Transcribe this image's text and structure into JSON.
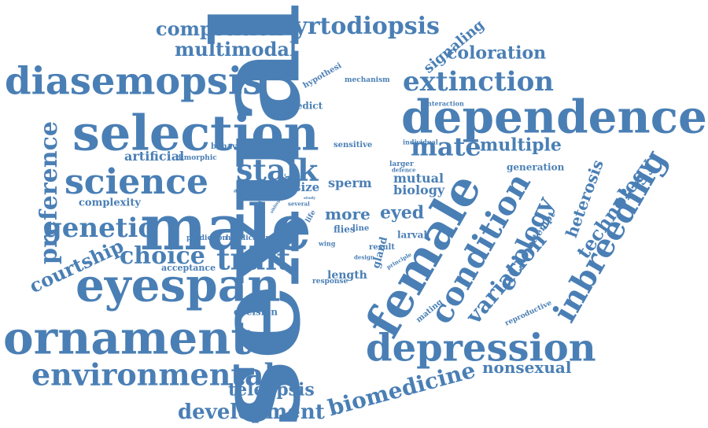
{
  "color": "#4a7fb5",
  "words": [
    {
      "text": "sexual",
      "rot": -90
    },
    {
      "text": "male",
      "rot": 0
    },
    {
      "text": "selection",
      "rot": 0
    },
    {
      "text": "dependence",
      "rot": 0
    },
    {
      "text": "ornament",
      "rot": 0
    },
    {
      "text": "eyespan",
      "rot": 0
    },
    {
      "text": "depression",
      "rot": 0
    },
    {
      "text": "female",
      "rot": -60
    },
    {
      "text": "diasemopsis",
      "rot": 0
    },
    {
      "text": "science",
      "rot": 0
    },
    {
      "text": "environmental",
      "rot": 0
    },
    {
      "text": "condition",
      "rot": -60
    },
    {
      "text": "inbreeding",
      "rot": -60
    },
    {
      "text": "trait",
      "rot": 0
    },
    {
      "text": "extinction",
      "rot": 0
    },
    {
      "text": "stalk",
      "rot": 0
    },
    {
      "text": "mate",
      "rot": 0
    },
    {
      "text": "genetic",
      "rot": 0
    },
    {
      "text": "choice",
      "rot": 0
    },
    {
      "text": "cyrtodiopsis",
      "rot": 0
    },
    {
      "text": "competition",
      "rot": 0
    },
    {
      "text": "multimodal",
      "rot": 0
    },
    {
      "text": "development",
      "rot": 0
    },
    {
      "text": "biomedicine",
      "rot": -15
    },
    {
      "text": "preference",
      "rot": -90
    },
    {
      "text": "courtship",
      "rot": -25
    },
    {
      "text": "ecology",
      "rot": -65
    },
    {
      "text": "variation",
      "rot": -50
    },
    {
      "text": "technology",
      "rot": -55
    },
    {
      "text": "heterosis",
      "rot": -70
    },
    {
      "text": "teleopsis",
      "rot": 0
    },
    {
      "text": "nonsexual",
      "rot": 0
    },
    {
      "text": "coloration",
      "rot": 0
    },
    {
      "text": "multiple",
      "rot": 0
    },
    {
      "text": "signaling",
      "rot": -40
    },
    {
      "text": "eyed",
      "rot": 0
    },
    {
      "text": "more",
      "rot": 0
    },
    {
      "text": "artificial",
      "rot": 0
    },
    {
      "text": "biology",
      "rot": 0
    },
    {
      "text": "sperm",
      "rot": 0
    },
    {
      "text": "mutual",
      "rot": 0
    },
    {
      "text": "size",
      "rot": 0
    },
    {
      "text": "complexity",
      "rot": 0
    },
    {
      "text": "length",
      "rot": 0
    },
    {
      "text": "decision",
      "rot": 0
    },
    {
      "text": "acceptance",
      "rot": 0
    },
    {
      "text": "larval",
      "rot": 0
    },
    {
      "text": "gland",
      "rot": -75
    },
    {
      "text": "attempt",
      "rot": -55
    },
    {
      "text": "predict",
      "rot": 0
    },
    {
      "text": "hypothesi",
      "rot": -30
    },
    {
      "text": "mechanism",
      "rot": 0
    },
    {
      "text": "behavior",
      "rot": 0
    },
    {
      "text": "sensitive",
      "rot": 0
    },
    {
      "text": "generation",
      "rot": 0
    },
    {
      "text": "dimorphic",
      "rot": 0
    },
    {
      "text": "risk",
      "rot": -60
    },
    {
      "text": "flies",
      "rot": 0
    },
    {
      "text": "line",
      "rot": 0
    },
    {
      "text": "prediction",
      "rot": 0
    },
    {
      "text": "handicap",
      "rot": 0
    },
    {
      "text": "strong",
      "rot": 0
    },
    {
      "text": "interaction",
      "rot": 0
    },
    {
      "text": "individual",
      "rot": 0
    },
    {
      "text": "larger",
      "rot": 0
    },
    {
      "text": "defence",
      "rot": 0
    },
    {
      "text": "addition",
      "rot": 0
    },
    {
      "text": "cultured",
      "rot": -80
    },
    {
      "text": "sibling",
      "rot": -60
    },
    {
      "text": "several",
      "rot": 0
    },
    {
      "text": "study",
      "rot": 0
    },
    {
      "text": "life",
      "rot": -60
    },
    {
      "text": "wing",
      "rot": 0
    },
    {
      "text": "design",
      "rot": 0
    },
    {
      "text": "result",
      "rot": 0
    },
    {
      "text": "principle",
      "rot": -30
    },
    {
      "text": "response",
      "rot": 0
    },
    {
      "text": "mating",
      "rot": -40
    },
    {
      "text": "reproductive",
      "rot": -25
    }
  ]
}
